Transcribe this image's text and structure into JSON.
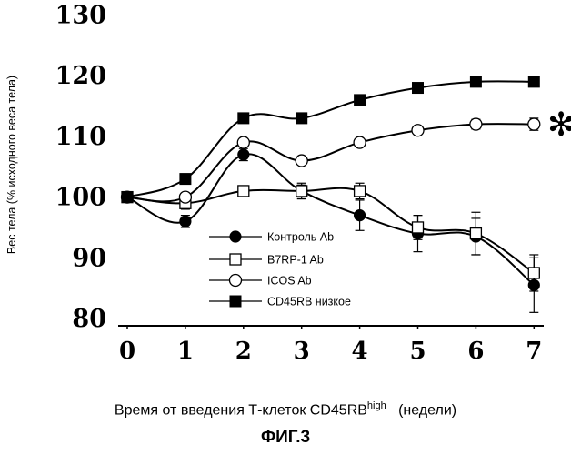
{
  "chart_data": {
    "type": "line",
    "title": "",
    "ylabel": "Вес тела (% исходного веса тела)",
    "xlabel_main": "Время от введения Т-клеток CD45RB",
    "xlabel_sup": "high",
    "xlabel_tail": "(недели)",
    "ylim": [
      80,
      130
    ],
    "yticks": [
      "80",
      "90",
      "100",
      "110",
      "120",
      "130"
    ],
    "xticks": [
      "0",
      "1",
      "2",
      "3",
      "4",
      "5",
      "6",
      "7"
    ],
    "x": [
      0,
      1,
      2,
      3,
      4,
      5,
      6,
      7
    ],
    "series": [
      {
        "name": "Контроль Ab",
        "marker": "filled-circle",
        "values": [
          100,
          96,
          107,
          101,
          97,
          94,
          93.5,
          85.5
        ],
        "err": [
          0.8,
          1,
          1,
          1,
          2.5,
          3,
          3,
          4.5
        ]
      },
      {
        "name": "B7RP-1 Ab",
        "marker": "open-square",
        "values": [
          100,
          99,
          101,
          101,
          101,
          95,
          94,
          87.5
        ],
        "err": [
          0.8,
          1,
          0.7,
          1.3,
          1.3,
          2,
          3.5,
          3
        ]
      },
      {
        "name": "ICOS Ab",
        "marker": "open-circle",
        "values": [
          100,
          100,
          109,
          106,
          109,
          111,
          112,
          112
        ],
        "err": [
          0.5,
          0.5,
          0.5,
          0.5,
          0.5,
          0.5,
          0.8,
          1
        ]
      },
      {
        "name": "CD45RB низкое",
        "marker": "filled-square",
        "values": [
          100,
          103,
          113,
          113,
          116,
          118,
          119,
          119
        ],
        "err": [
          0.5,
          0.5,
          0.5,
          0.5,
          0.5,
          0.5,
          0.5,
          0.5
        ]
      }
    ],
    "annotation": "✻"
  },
  "figure_label": "ФИГ.3"
}
